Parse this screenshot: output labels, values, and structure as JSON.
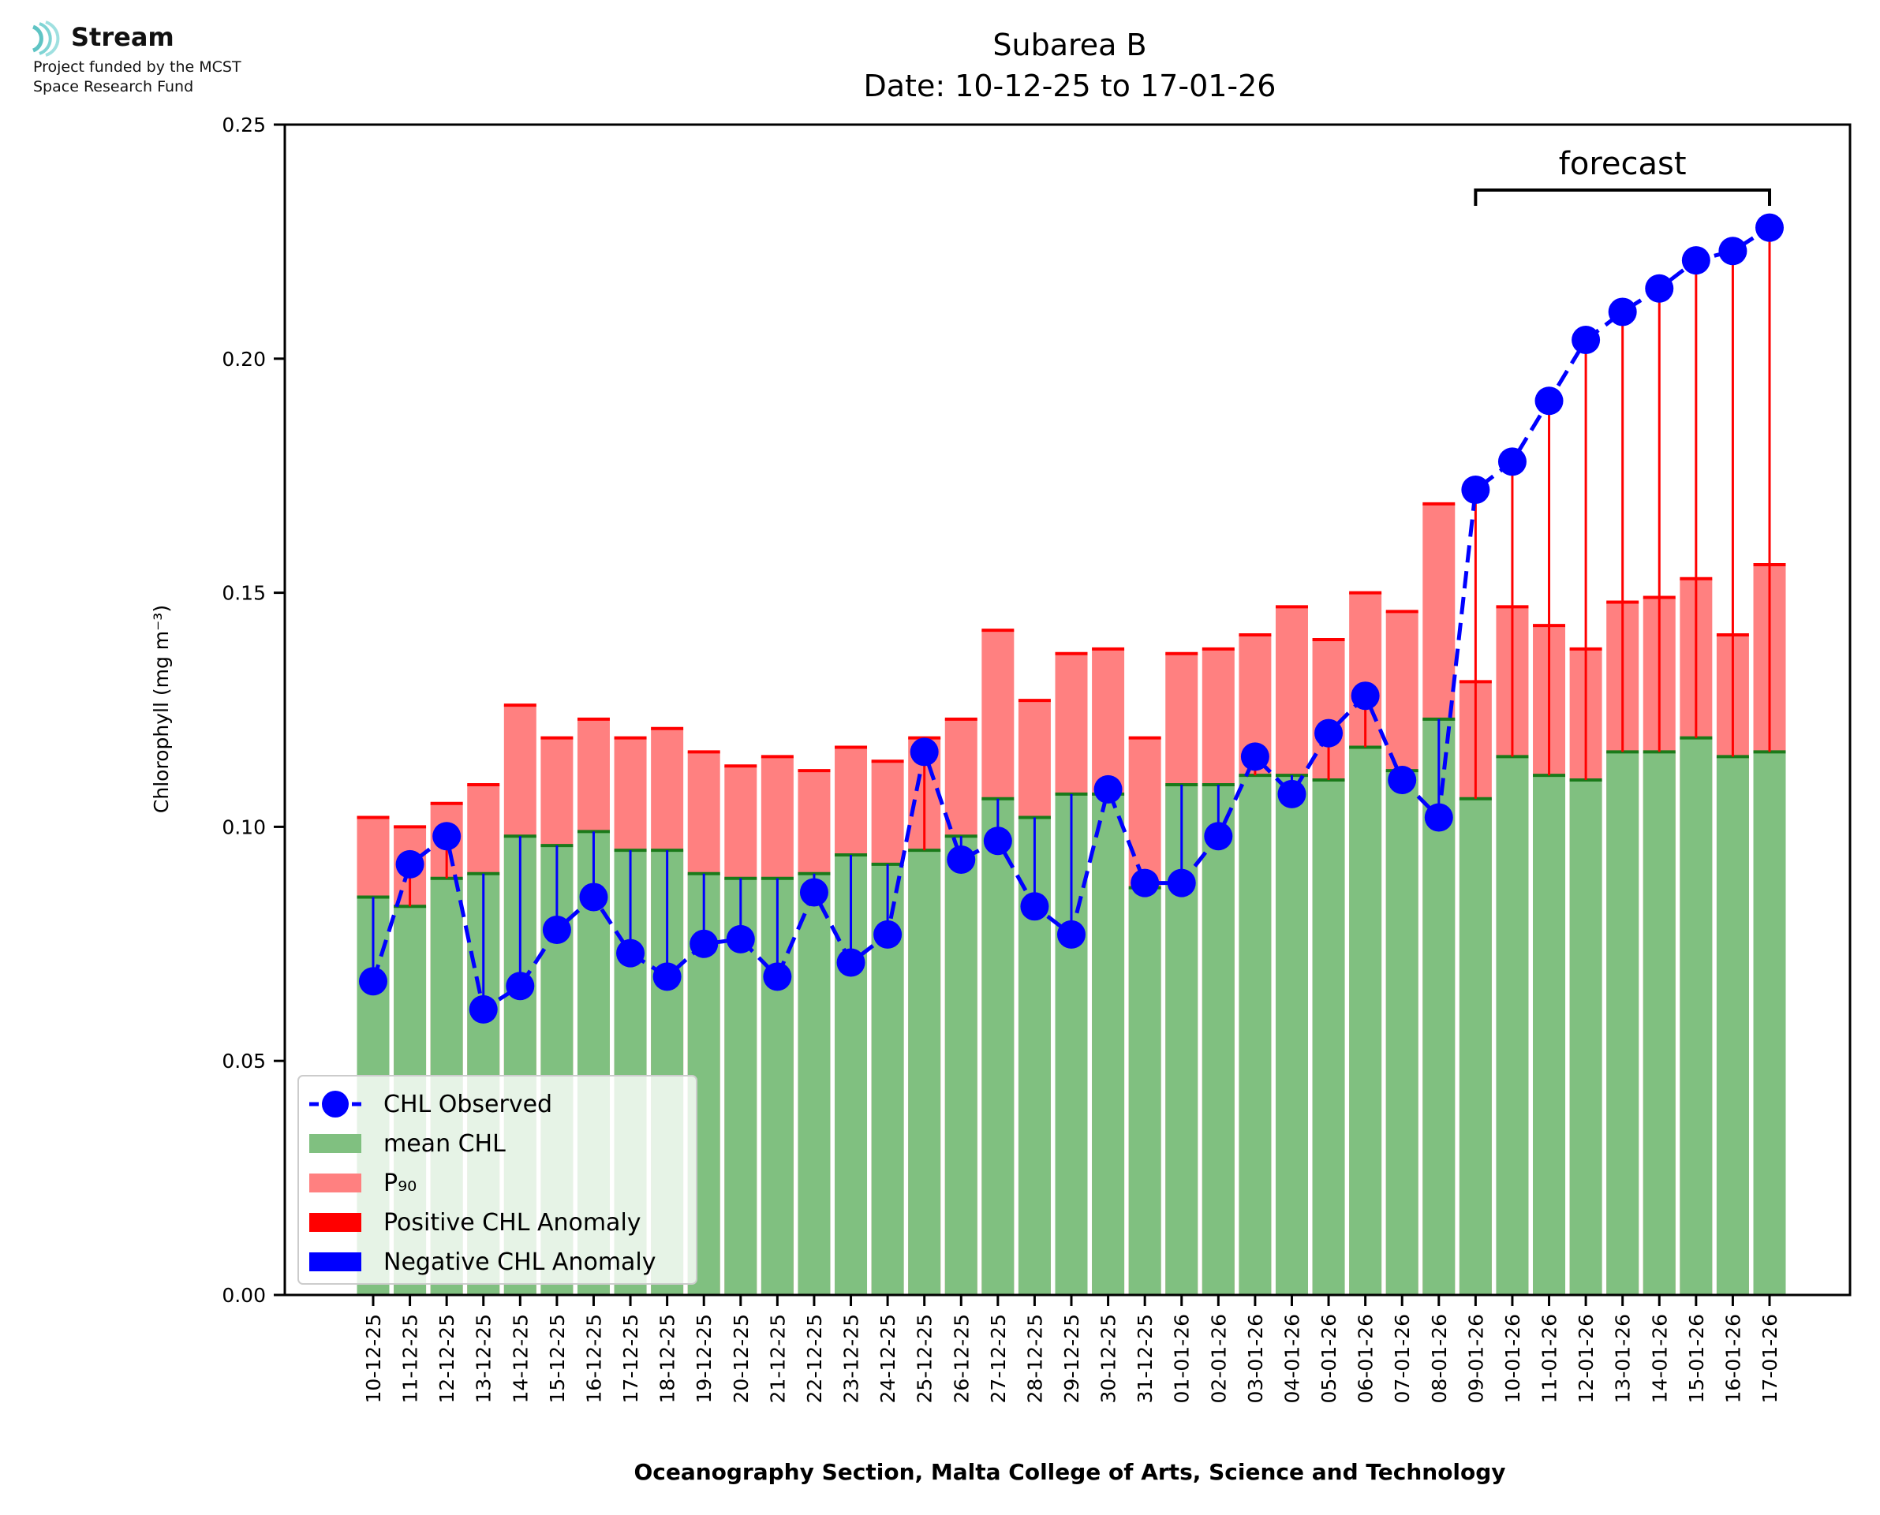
{
  "logo": {
    "name": "Stream",
    "line1": "Project funded by the MCST",
    "line2": "Space Research Fund"
  },
  "colors": {
    "mean": "#80c080",
    "p90": "#ff8080",
    "positive": "#ff0000",
    "negative": "#0000ff",
    "observed": "#0000ff",
    "meanTop": "#1a7a1a"
  },
  "chart_data": {
    "type": "bar",
    "title": "Subarea B",
    "subtitle": "Date: 10-12-25 to 17-01-26",
    "ylabel": "Chlorophyll (mg m⁻³)",
    "xlabel": "Oceanography Section, Malta College of Arts, Science and Technology",
    "ylim": [
      0,
      0.25
    ],
    "yticks": [
      0.0,
      0.05,
      0.1,
      0.15,
      0.2,
      0.25
    ],
    "ytick_labels": [
      "0.00",
      "0.05",
      "0.10",
      "0.15",
      "0.20",
      "0.25"
    ],
    "forecast_label": "forecast",
    "forecast_start": "09-01-26",
    "forecast_end": "17-01-26",
    "categories": [
      "10-12-25",
      "11-12-25",
      "12-12-25",
      "13-12-25",
      "14-12-25",
      "15-12-25",
      "16-12-25",
      "17-12-25",
      "18-12-25",
      "19-12-25",
      "20-12-25",
      "21-12-25",
      "22-12-25",
      "23-12-25",
      "24-12-25",
      "25-12-25",
      "26-12-25",
      "27-12-25",
      "28-12-25",
      "29-12-25",
      "30-12-25",
      "31-12-25",
      "01-01-26",
      "02-01-26",
      "03-01-26",
      "04-01-26",
      "05-01-26",
      "06-01-26",
      "07-01-26",
      "08-01-26",
      "09-01-26",
      "10-01-26",
      "11-01-26",
      "12-01-26",
      "13-01-26",
      "14-01-26",
      "15-01-26",
      "16-01-26",
      "17-01-26"
    ],
    "series": [
      {
        "name": "CHL Observed",
        "type": "line",
        "values": [
          0.067,
          0.092,
          0.098,
          0.061,
          0.066,
          0.078,
          0.085,
          0.073,
          0.068,
          0.075,
          0.076,
          0.068,
          0.086,
          0.071,
          0.077,
          0.116,
          0.093,
          0.097,
          0.083,
          0.077,
          0.108,
          0.088,
          0.088,
          0.098,
          0.115,
          0.107,
          0.12,
          0.128,
          0.11,
          0.102,
          0.172,
          0.178,
          0.191,
          0.204,
          0.21,
          0.215,
          0.221,
          0.223,
          0.228
        ]
      },
      {
        "name": "mean CHL",
        "type": "bar",
        "values": [
          0.085,
          0.083,
          0.089,
          0.09,
          0.098,
          0.096,
          0.099,
          0.095,
          0.095,
          0.09,
          0.089,
          0.089,
          0.09,
          0.094,
          0.092,
          0.095,
          0.098,
          0.106,
          0.102,
          0.107,
          0.107,
          0.087,
          0.109,
          0.109,
          0.111,
          0.111,
          0.11,
          0.117,
          0.112,
          0.123,
          0.106,
          0.115,
          0.111,
          0.11,
          0.116,
          0.116,
          0.119,
          0.115,
          0.116
        ]
      },
      {
        "name": "P₉₀",
        "type": "bar",
        "values": [
          0.102,
          0.1,
          0.105,
          0.109,
          0.126,
          0.119,
          0.123,
          0.119,
          0.121,
          0.116,
          0.113,
          0.115,
          0.112,
          0.117,
          0.114,
          0.119,
          0.123,
          0.142,
          0.127,
          0.137,
          0.138,
          0.119,
          0.137,
          0.138,
          0.141,
          0.147,
          0.14,
          0.15,
          0.146,
          0.169,
          0.131,
          0.147,
          0.143,
          0.138,
          0.148,
          0.149,
          0.153,
          0.141,
          0.156
        ]
      }
    ],
    "legend": [
      "CHL Observed",
      "mean CHL",
      "P₉₀",
      "Positive CHL Anomaly",
      "Negative CHL Anomaly"
    ],
    "legend_position": "lower-left"
  }
}
